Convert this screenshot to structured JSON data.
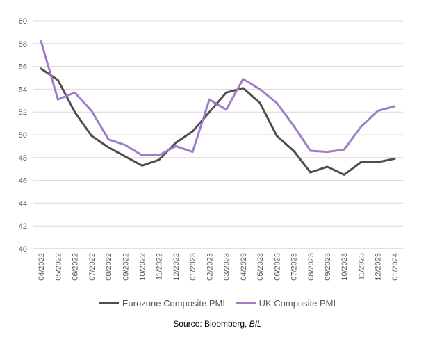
{
  "chart_data": {
    "type": "line",
    "categories": [
      "04/2022",
      "05/2022",
      "06/2022",
      "07/2022",
      "08/2022",
      "09/2022",
      "10/2022",
      "11/2022",
      "12/2022",
      "01/2023",
      "02/2023",
      "03/2023",
      "04/2023",
      "05/2023",
      "06/2023",
      "07/2023",
      "08/2023",
      "09/2023",
      "10/2023",
      "11/2023",
      "12/2023",
      "01/2024"
    ],
    "series": [
      {
        "name": "Eurozone Composite PMI",
        "color": "#4d4d4f",
        "values": [
          55.8,
          54.8,
          52.0,
          49.9,
          48.9,
          48.1,
          47.3,
          47.8,
          49.3,
          50.3,
          52.0,
          53.7,
          54.1,
          52.8,
          49.9,
          48.6,
          46.7,
          47.2,
          46.5,
          47.6,
          47.6,
          47.9
        ]
      },
      {
        "name": "UK Composite PMI",
        "color": "#a07cc5",
        "values": [
          58.2,
          53.1,
          53.7,
          52.1,
          49.6,
          49.1,
          48.2,
          48.2,
          49.0,
          48.5,
          53.1,
          52.2,
          54.9,
          54.0,
          52.8,
          50.8,
          48.6,
          48.5,
          48.7,
          50.7,
          52.1,
          52.5
        ]
      }
    ],
    "ylim": [
      40,
      60
    ],
    "yticks": [
      "40",
      "42",
      "44",
      "46",
      "48",
      "50",
      "52",
      "54",
      "56",
      "58",
      "60"
    ],
    "grid": true,
    "legend_position": "bottom",
    "title": "",
    "xlabel": "",
    "ylabel": ""
  },
  "source": {
    "prefix": "Source: Bloomberg, ",
    "italic": "BIL"
  }
}
